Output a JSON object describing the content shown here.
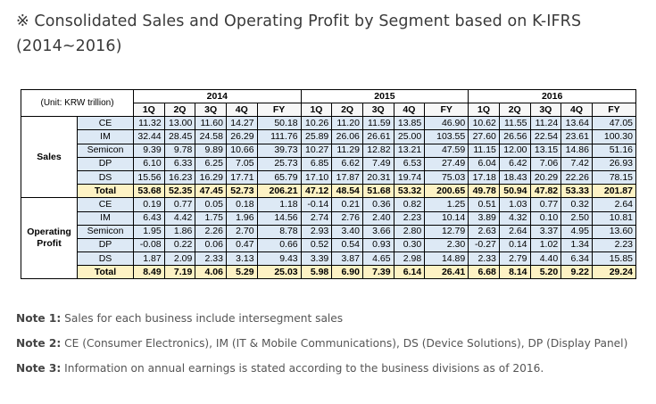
{
  "title": {
    "line1": "※ Consolidated Sales and Operating Profit by Segment based on K-IFRS",
    "line2": "(2014~2016)"
  },
  "table": {
    "unit_label": "(Unit: KRW trillion)",
    "years": [
      "2014",
      "2015",
      "2016"
    ],
    "quarters": [
      "1Q",
      "2Q",
      "3Q",
      "4Q",
      "FY"
    ],
    "groups": [
      {
        "name": "Sales",
        "rows": [
          {
            "label": "CE",
            "values": [
              "11.32",
              "13.00",
              "11.60",
              "14.27",
              "50.18",
              "10.26",
              "11.20",
              "11.59",
              "13.85",
              "46.90",
              "10.62",
              "11.55",
              "11.24",
              "13.64",
              "47.05"
            ]
          },
          {
            "label": "IM",
            "values": [
              "32.44",
              "28.45",
              "24.58",
              "26.29",
              "111.76",
              "25.89",
              "26.06",
              "26.61",
              "25.00",
              "103.55",
              "27.60",
              "26.56",
              "22.54",
              "23.61",
              "100.30"
            ]
          },
          {
            "label": "Semicon",
            "values": [
              "9.39",
              "9.78",
              "9.89",
              "10.66",
              "39.73",
              "10.27",
              "11.29",
              "12.82",
              "13.21",
              "47.59",
              "11.15",
              "12.00",
              "13.15",
              "14.86",
              "51.16"
            ]
          },
          {
            "label": "DP",
            "values": [
              "6.10",
              "6.33",
              "6.25",
              "7.05",
              "25.73",
              "6.85",
              "6.62",
              "7.49",
              "6.53",
              "27.49",
              "6.04",
              "6.42",
              "7.06",
              "7.42",
              "26.93"
            ]
          },
          {
            "label": "DS",
            "values": [
              "15.56",
              "16.23",
              "16.29",
              "17.71",
              "65.79",
              "17.10",
              "17.87",
              "20.31",
              "19.74",
              "75.03",
              "17.18",
              "18.43",
              "20.29",
              "22.26",
              "78.15"
            ]
          },
          {
            "label": "Total",
            "values": [
              "53.68",
              "52.35",
              "47.45",
              "52.73",
              "206.21",
              "47.12",
              "48.54",
              "51.68",
              "53.32",
              "200.65",
              "49.78",
              "50.94",
              "47.82",
              "53.33",
              "201.87"
            ]
          }
        ]
      },
      {
        "name_line1": "Operating",
        "name_line2": "Profit",
        "rows": [
          {
            "label": "CE",
            "values": [
              "0.19",
              "0.77",
              "0.05",
              "0.18",
              "1.18",
              "-0.14",
              "0.21",
              "0.36",
              "0.82",
              "1.25",
              "0.51",
              "1.03",
              "0.77",
              "0.32",
              "2.64"
            ]
          },
          {
            "label": "IM",
            "values": [
              "6.43",
              "4.42",
              "1.75",
              "1.96",
              "14.56",
              "2.74",
              "2.76",
              "2.40",
              "2.23",
              "10.14",
              "3.89",
              "4.32",
              "0.10",
              "2.50",
              "10.81"
            ]
          },
          {
            "label": "Semicon",
            "values": [
              "1.95",
              "1.86",
              "2.26",
              "2.70",
              "8.78",
              "2.93",
              "3.40",
              "3.66",
              "2.80",
              "12.79",
              "2.63",
              "2.64",
              "3.37",
              "4.95",
              "13.60"
            ]
          },
          {
            "label": "DP",
            "values": [
              "-0.08",
              "0.22",
              "0.06",
              "0.47",
              "0.66",
              "0.52",
              "0.54",
              "0.93",
              "0.30",
              "2.30",
              "-0.27",
              "0.14",
              "1.02",
              "1.34",
              "2.23"
            ]
          },
          {
            "label": "DS",
            "values": [
              "1.87",
              "2.09",
              "2.33",
              "3.13",
              "9.43",
              "3.39",
              "3.87",
              "4.65",
              "2.98",
              "14.89",
              "2.33",
              "2.79",
              "4.40",
              "6.34",
              "15.85"
            ]
          },
          {
            "label": "Total",
            "values": [
              "8.49",
              "7.19",
              "4.06",
              "5.29",
              "25.03",
              "5.98",
              "6.90",
              "7.39",
              "6.14",
              "26.41",
              "6.68",
              "8.14",
              "5.20",
              "9.22",
              "29.24"
            ]
          }
        ]
      }
    ]
  },
  "notes": [
    {
      "label": "Note 1:",
      "text": " Sales for each business include intersegment sales"
    },
    {
      "label": "Note 2:",
      "text": " CE (Consumer Electronics), IM (IT & Mobile Communications), DS (Device Solutions), DP (Display Panel)"
    },
    {
      "label": "Note 3:",
      "text": " Information on annual earnings is stated according to the business divisions as of 2016."
    }
  ]
}
